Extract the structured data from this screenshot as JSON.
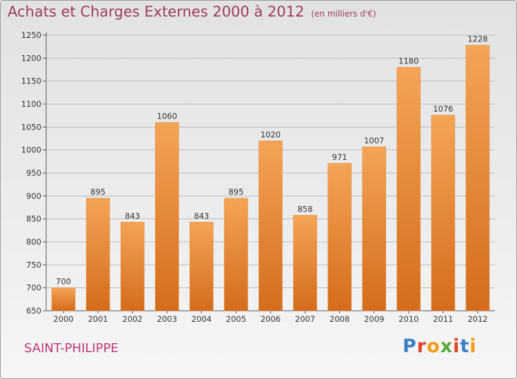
{
  "title": "Achats et Charges Externes 2000 à 2012",
  "subtitle": "(en milliers d'€)",
  "city": "SAINT-PHILIPPE",
  "logo": {
    "text": "Proxiti",
    "letter_colors": [
      "#3b7fc4",
      "#e1442a",
      "#f29b16",
      "#58a838",
      "#e1442a",
      "#3b7fc4",
      "#f29b16"
    ]
  },
  "colors": {
    "bar_top": "#f4a456",
    "bar_bottom": "#d46c1b",
    "title": "#9b3b5e",
    "city": "#c0357b"
  },
  "chart_data": {
    "type": "bar",
    "title": "Achats et Charges Externes 2000 à 2012",
    "subtitle": "(en milliers d'€)",
    "categories": [
      "2000",
      "2001",
      "2002",
      "2003",
      "2004",
      "2005",
      "2006",
      "2007",
      "2008",
      "2009",
      "2010",
      "2011",
      "2012"
    ],
    "values": [
      700,
      895,
      843,
      1060,
      843,
      895,
      1020,
      858,
      971,
      1007,
      1180,
      1076,
      1228
    ],
    "value_labels": [
      "700",
      "895",
      "843",
      "1060",
      "843",
      "895",
      "1020",
      "858",
      "971",
      "1007",
      "1180",
      "1076",
      "1228"
    ],
    "ylim": [
      650,
      1250
    ],
    "yticks": [
      650,
      700,
      750,
      800,
      850,
      900,
      950,
      1000,
      1050,
      1100,
      1150,
      1200,
      1250
    ],
    "grid": true,
    "xlabel": "",
    "ylabel": ""
  }
}
